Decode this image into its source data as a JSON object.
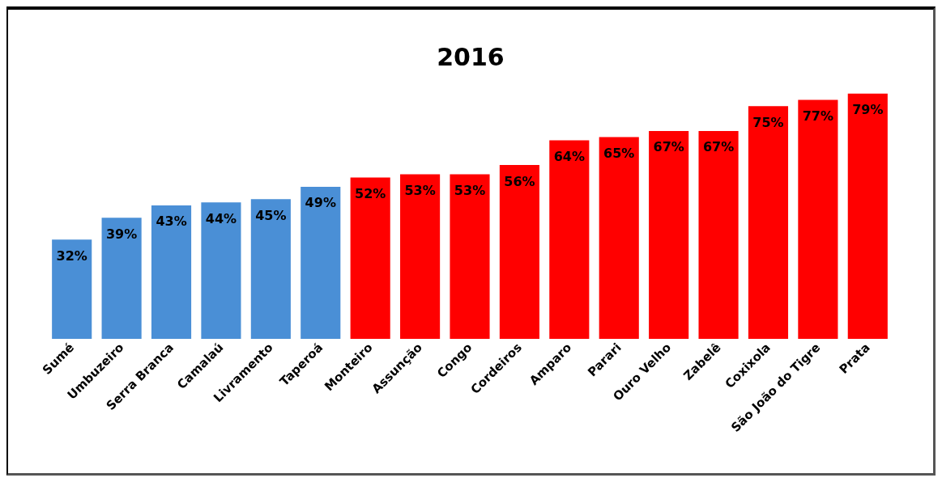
{
  "chart_data": {
    "type": "bar",
    "title": "2016",
    "categories": [
      "Sumé",
      "Umbuzeiro",
      "Serra Branca",
      "Camalaú",
      "Livramento",
      "Taperoá",
      "Monteiro",
      "Assunção",
      "Congo",
      "Cordeiros",
      "Amparo",
      "Parari",
      "Ouro Velho",
      "Zabelê",
      "Coxixola",
      "São João do Tigre",
      "Prata"
    ],
    "values": [
      32,
      39,
      43,
      44,
      45,
      49,
      52,
      53,
      53,
      56,
      64,
      65,
      67,
      67,
      75,
      77,
      79
    ],
    "colors": [
      "#4a8fd6",
      "#4a8fd6",
      "#4a8fd6",
      "#4a8fd6",
      "#4a8fd6",
      "#4a8fd6",
      "#ff0000",
      "#ff0000",
      "#ff0000",
      "#ff0000",
      "#ff0000",
      "#ff0000",
      "#ff0000",
      "#ff0000",
      "#ff0000",
      "#ff0000",
      "#ff0000"
    ],
    "value_labels": [
      "32%",
      "39%",
      "43%",
      "44%",
      "45%",
      "49%",
      "52%",
      "53%",
      "53%",
      "56%",
      "64%",
      "65%",
      "67%",
      "67%",
      "75%",
      "77%",
      "79%"
    ],
    "grid": false
  }
}
